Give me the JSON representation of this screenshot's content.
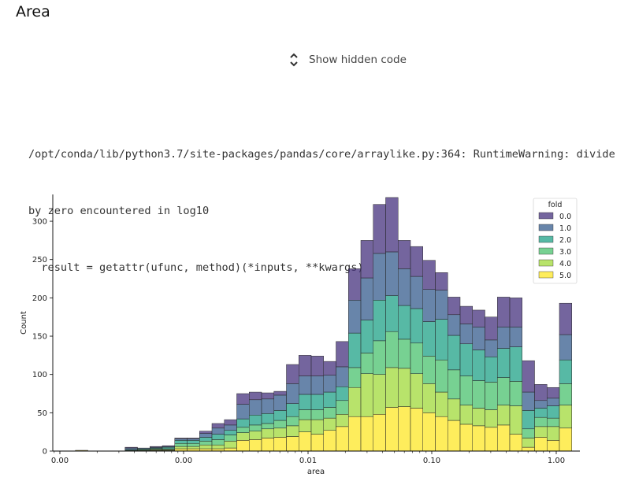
{
  "page": {
    "title": "Area"
  },
  "code_toggle": {
    "label": "Show hidden code",
    "icon": "expand-collapse-icon"
  },
  "output": {
    "lines": [
      "/opt/conda/lib/python3.7/site-packages/pandas/core/arraylike.py:364: RuntimeWarning: divide",
      "by zero encountered in log10",
      "  result = getattr(ufunc, method)(*inputs, **kwargs)"
    ]
  },
  "chart_data": {
    "type": "bar",
    "stacked": true,
    "x_scale": "log",
    "xlabel": "area",
    "ylabel": "Count",
    "ylim": [
      0,
      335
    ],
    "yticks": [
      0,
      50,
      100,
      150,
      200,
      250,
      300
    ],
    "xticks": [
      "0.00",
      "0.00",
      "0.01",
      "0.10",
      "1.00"
    ],
    "legend": {
      "title": "fold",
      "placement": "top-right"
    },
    "series": [
      {
        "name": "5.0",
        "color": "#fde725",
        "values": [
          0,
          1,
          0,
          0,
          0,
          0,
          0,
          1,
          1,
          3,
          3,
          3,
          3,
          4,
          14,
          15,
          17,
          18,
          19,
          25,
          22,
          27,
          32,
          45,
          45,
          48,
          57,
          58,
          56,
          50,
          45,
          40,
          35,
          33,
          31,
          34,
          22,
          5,
          18,
          14,
          30
        ]
      },
      {
        "name": "4.0",
        "color": "#a0da39",
        "values": [
          0,
          0,
          0,
          0,
          0,
          0,
          1,
          1,
          1,
          3,
          3,
          5,
          5,
          9,
          10,
          11,
          12,
          12,
          14,
          16,
          19,
          16,
          16,
          38,
          56,
          52,
          52,
          50,
          45,
          38,
          32,
          28,
          25,
          23,
          23,
          26,
          37,
          12,
          14,
          18,
          30
        ]
      },
      {
        "name": "3.0",
        "color": "#4ac16d",
        "values": [
          0,
          0,
          0,
          0,
          0,
          1,
          1,
          1,
          1,
          4,
          4,
          5,
          7,
          8,
          7,
          8,
          7,
          10,
          12,
          13,
          13,
          14,
          18,
          26,
          27,
          44,
          47,
          38,
          40,
          36,
          42,
          38,
          38,
          36,
          36,
          36,
          32,
          12,
          12,
          11,
          28
        ]
      },
      {
        "name": "2.0",
        "color": "#1fa187",
        "values": [
          0,
          0,
          0,
          0,
          0,
          1,
          1,
          1,
          2,
          4,
          4,
          5,
          7,
          6,
          11,
          13,
          13,
          13,
          17,
          20,
          20,
          20,
          18,
          45,
          43,
          53,
          47,
          44,
          45,
          45,
          53,
          45,
          42,
          40,
          33,
          38,
          45,
          24,
          12,
          16,
          31
        ]
      },
      {
        "name": "1.0",
        "color": "#365c8d",
        "values": [
          0,
          0,
          0,
          0,
          0,
          2,
          1,
          1,
          1,
          2,
          2,
          5,
          8,
          7,
          19,
          20,
          19,
          20,
          26,
          24,
          24,
          22,
          26,
          43,
          55,
          61,
          57,
          48,
          42,
          42,
          38,
          27,
          26,
          30,
          22,
          28,
          26,
          24,
          10,
          10,
          33
        ]
      },
      {
        "name": "0.0",
        "color": "#46327e",
        "values": [
          0,
          0,
          0,
          0,
          0,
          1,
          0,
          1,
          1,
          1,
          1,
          3,
          6,
          7,
          14,
          10,
          8,
          5,
          25,
          27,
          26,
          18,
          33,
          41,
          49,
          64,
          71,
          37,
          39,
          38,
          23,
          23,
          23,
          22,
          30,
          39,
          38,
          41,
          21,
          14,
          41
        ]
      }
    ]
  }
}
